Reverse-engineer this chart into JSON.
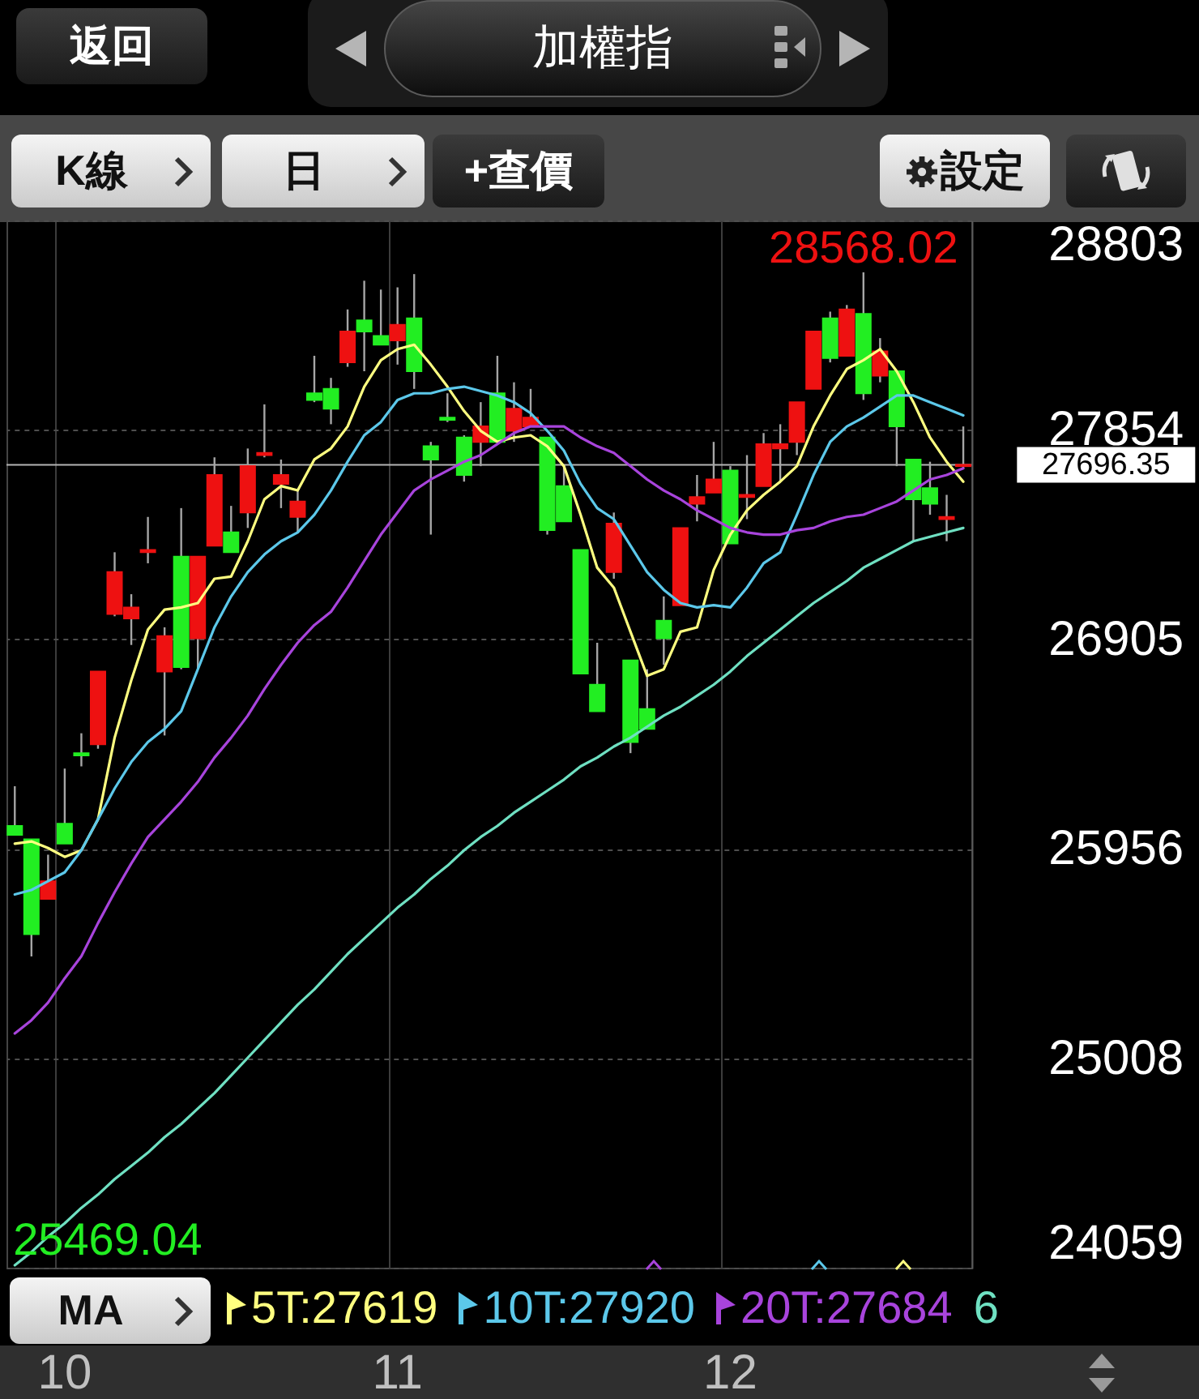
{
  "chart_data": {
    "type": "candlestick",
    "title": "加權指",
    "categories": [
      null,
      null,
      null,
      "10",
      null,
      null,
      null,
      null,
      null,
      null,
      null,
      null,
      null,
      null,
      null,
      null,
      null,
      null,
      null,
      null,
      null,
      null,
      null,
      "11",
      null,
      null,
      null,
      null,
      null,
      null,
      null,
      null,
      null,
      null,
      null,
      null,
      null,
      null,
      null,
      null,
      null,
      null,
      null,
      "12",
      null,
      null,
      null,
      null,
      null,
      null,
      null,
      null,
      null,
      null,
      null,
      null,
      null,
      null
    ],
    "ohlc": [
      [
        26060,
        26240,
        26020,
        26020
      ],
      [
        26000,
        26000,
        25469.04,
        25570
      ],
      [
        25730,
        25930,
        25730,
        25810
      ],
      [
        26070,
        26320,
        25980,
        25980
      ],
      [
        26390,
        26480,
        26330,
        26380
      ],
      [
        26430,
        26760,
        26410,
        26760
      ],
      [
        27020,
        27300,
        27010,
        27210
      ],
      [
        27000,
        27110,
        26880,
        27050
      ],
      [
        27300,
        27460,
        27250,
        27310
      ],
      [
        26760,
        26960,
        26470,
        26920
      ],
      [
        27280,
        27500,
        26770,
        26780
      ],
      [
        26910,
        27280,
        26770,
        27280
      ],
      [
        27330,
        27730,
        27330,
        27650
      ],
      [
        27390,
        27510,
        27300,
        27300
      ],
      [
        27480,
        27770,
        27410,
        27690
      ],
      [
        27740,
        27970,
        27730,
        27750
      ],
      [
        27610,
        27720,
        27500,
        27650
      ],
      [
        27460,
        27580,
        27390,
        27530
      ],
      [
        28020,
        28190,
        27980,
        27990
      ],
      [
        28040,
        28090,
        27880,
        27950
      ],
      [
        28160,
        28400,
        28140,
        28300
      ],
      [
        28350,
        28530,
        28120,
        28300
      ],
      [
        28280,
        28490,
        28240,
        28240
      ],
      [
        28260,
        28500,
        28150,
        28330
      ],
      [
        28360,
        28560,
        28040,
        28120
      ],
      [
        27780,
        27800,
        27380,
        27720
      ],
      [
        27910,
        28020,
        27890,
        27900
      ],
      [
        27820,
        27830,
        27620,
        27650
      ],
      [
        27800,
        27980,
        27690,
        27870
      ],
      [
        28020,
        28190,
        27800,
        27800
      ],
      [
        27850,
        28070,
        27800,
        27950
      ],
      [
        27870,
        28040,
        27870,
        27910
      ],
      [
        27820,
        27820,
        27380,
        27400
      ],
      [
        27600,
        27690,
        27440,
        27440
      ],
      [
        27310,
        27310,
        26750,
        26750
      ],
      [
        26700,
        26890,
        26580,
        26580
      ],
      [
        27210,
        27480,
        27180,
        27430
      ],
      [
        26810,
        26810,
        26390,
        26440
      ],
      [
        26590,
        26770,
        26500,
        26500
      ],
      [
        26990,
        27100,
        26790,
        26910
      ],
      [
        27060,
        27410,
        27060,
        27410
      ],
      [
        27520,
        27650,
        27440,
        27550
      ],
      [
        27570,
        27800,
        27570,
        27630
      ],
      [
        27670,
        27690,
        27340,
        27340
      ],
      [
        27550,
        27740,
        27450,
        27560
      ],
      [
        27600,
        27840,
        27600,
        27790
      ],
      [
        27770,
        27880,
        27620,
        27790
      ],
      [
        27800,
        27980,
        27740,
        27980
      ],
      [
        28040,
        28300,
        28040,
        28300
      ],
      [
        28360,
        28390,
        28160,
        28180
      ],
      [
        28190,
        28420,
        28190,
        28400
      ],
      [
        28380,
        28568.02,
        27990,
        28020
      ],
      [
        28100,
        28270,
        28070,
        28210
      ],
      [
        28120,
        28120,
        27690,
        27870
      ],
      [
        27720,
        27720,
        27350,
        27540
      ],
      [
        27590,
        27710,
        27470,
        27520
      ],
      [
        27450,
        27560,
        27350,
        27460
      ],
      [
        27690,
        27870,
        27680,
        27696.35
      ]
    ],
    "colors": [
      "#22ee22",
      "#22ee22",
      "#ee1111",
      "#22ee22",
      "#22ee22",
      "#ee1111",
      "#ee1111",
      "#ee1111",
      "#ee1111",
      "#ee1111",
      "#22ee22",
      "#ee1111",
      "#ee1111",
      "#22ee22",
      "#ee1111",
      "#ee1111",
      "#ee1111",
      "#ee1111",
      "#22ee22",
      "#22ee22",
      "#ee1111",
      "#22ee22",
      "#22ee22",
      "#ee1111",
      "#22ee22",
      "#22ee22",
      "#22ee22",
      "#22ee22",
      "#ee1111",
      "#22ee22",
      "#ee1111",
      "#ee1111",
      "#22ee22",
      "#22ee22",
      "#22ee22",
      "#22ee22",
      "#ee1111",
      "#22ee22",
      "#22ee22",
      "#22ee22",
      "#ee1111",
      "#ee1111",
      "#ee1111",
      "#22ee22",
      "#ee1111",
      "#ee1111",
      "#ee1111",
      "#ee1111",
      "#ee1111",
      "#22ee22",
      "#ee1111",
      "#22ee22",
      "#ee1111",
      "#22ee22",
      "#22ee22",
      "#22ee22",
      "#ee1111",
      "#ee1111"
    ],
    "series": [
      {
        "name": "5T:27619",
        "type": "line",
        "color": "#ffff80",
        "values": [
          25980,
          25990,
          25960,
          25920,
          25950,
          26090,
          26460,
          26720,
          26950,
          27040,
          27050,
          27070,
          27180,
          27190,
          27350,
          27540,
          27600,
          27580,
          27720,
          27770,
          27870,
          28050,
          28170,
          28220,
          28240,
          28150,
          28050,
          27940,
          27850,
          27800,
          27820,
          27830,
          27780,
          27690,
          27470,
          27230,
          27140,
          26940,
          26740,
          26770,
          26940,
          26960,
          27220,
          27380,
          27490,
          27560,
          27620,
          27690,
          27870,
          28010,
          28130,
          28170,
          28220,
          28120,
          27980,
          27820,
          27710,
          27620
        ]
      },
      {
        "name": "10T:27920",
        "type": "line",
        "color": "#5cc8ea",
        "values": [
          25750,
          25770,
          25810,
          25850,
          25950,
          26090,
          26230,
          26350,
          26440,
          26500,
          26580,
          26770,
          26960,
          27100,
          27210,
          27290,
          27350,
          27390,
          27470,
          27580,
          27710,
          27830,
          27890,
          27990,
          28020,
          28020,
          28040,
          28050,
          28030,
          28010,
          27980,
          27930,
          27850,
          27760,
          27610,
          27500,
          27450,
          27330,
          27210,
          27130,
          27070,
          27050,
          27060,
          27050,
          27140,
          27250,
          27300,
          27470,
          27650,
          27800,
          27870,
          27910,
          27960,
          28010,
          28010,
          27980,
          27950,
          27920
        ]
      },
      {
        "name": "20T:27684",
        "type": "line",
        "color": "#a844dc",
        "values": [
          25120,
          25180,
          25260,
          25370,
          25470,
          25620,
          25760,
          25890,
          26010,
          26090,
          26170,
          26260,
          26370,
          26460,
          26560,
          26680,
          26790,
          26890,
          26970,
          27030,
          27140,
          27260,
          27380,
          27480,
          27580,
          27630,
          27670,
          27710,
          27740,
          27790,
          27840,
          27870,
          27870,
          27870,
          27820,
          27780,
          27750,
          27690,
          27630,
          27580,
          27540,
          27490,
          27450,
          27410,
          27390,
          27380,
          27380,
          27400,
          27410,
          27440,
          27460,
          27470,
          27500,
          27530,
          27580,
          27630,
          27650,
          27680
        ]
      },
      {
        "name": "6",
        "type": "line",
        "color": "#6fe0c2",
        "values": [
          24070,
          24130,
          24200,
          24260,
          24330,
          24390,
          24460,
          24520,
          24580,
          24650,
          24710,
          24780,
          24850,
          24930,
          25010,
          25090,
          25170,
          25250,
          25320,
          25400,
          25480,
          25550,
          25620,
          25690,
          25750,
          25820,
          25880,
          25950,
          26010,
          26060,
          26120,
          26170,
          26220,
          26270,
          26330,
          26370,
          26420,
          26460,
          26510,
          26560,
          26600,
          26650,
          26700,
          26760,
          26830,
          26890,
          26950,
          27010,
          27070,
          27120,
          27170,
          27230,
          27270,
          27310,
          27350,
          27370,
          27390,
          27410
        ]
      }
    ],
    "ylim": [
      24059,
      28803
    ],
    "yticks": [
      24059,
      25008,
      25956,
      26905,
      27854,
      28803
    ],
    "grid": true,
    "legend": "bottom",
    "ref_lines": [
      {
        "axis": "y",
        "value": 27696.35,
        "label": "27696.35",
        "color": "#b4b4b4"
      }
    ],
    "annotations": [
      "返回",
      "K線",
      "日",
      "+查價",
      "設定",
      "MA",
      "28568.02",
      "25469.04"
    ]
  }
}
